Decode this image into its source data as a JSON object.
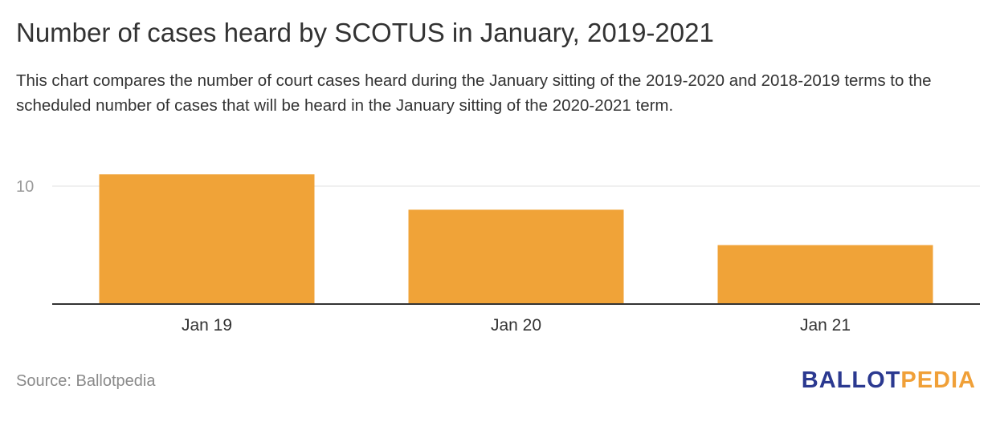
{
  "title": "Number of cases heard by SCOTUS in January, 2019-2021",
  "subtitle": "This chart compares the number of court cases heard during the January sitting of the 2019-2020 and 2018-2019 terms to the scheduled number of cases that will be heard in the January sitting of the 2020-2021 term.",
  "source": "Source: Ballotpedia",
  "logo": {
    "part_a": "BALLOT",
    "part_b": "PEDIA"
  },
  "colors": {
    "bar": "#f0a338",
    "text": "#333333",
    "muted": "#8a8a8a",
    "grid": "#e0e0e0",
    "axis": "#333333",
    "logo_blue": "#2b3990",
    "logo_orange": "#f0a038"
  },
  "chart_data": {
    "type": "bar",
    "categories": [
      "Jan 19",
      "Jan 20",
      "Jan 21"
    ],
    "values": [
      11,
      8,
      5
    ],
    "y_ticks": [
      10
    ],
    "ylim": [
      0,
      11
    ],
    "xlabel": "",
    "ylabel": "",
    "grid": true,
    "legend": "none"
  }
}
